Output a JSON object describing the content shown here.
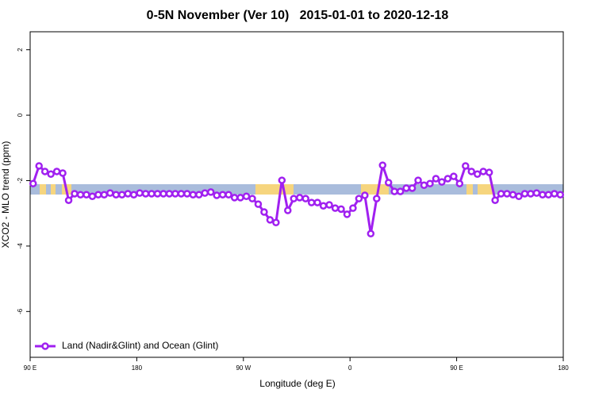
{
  "chart_data": {
    "type": "line",
    "title": "0-5N November (Ver 10)   2015-01-01 to 2020-12-18",
    "x_label": "Longitude (deg E)",
    "y_label": "XCO2 - MLO trend (ppm)",
    "xlim": [
      90,
      540
    ],
    "xticks": [
      {
        "value": 90,
        "label": "90 E"
      },
      180,
      {
        "value": 270,
        "label": "90 W"
      },
      {
        "value": 360,
        "label": "0"
      },
      {
        "value": 450,
        "label": "90 E"
      },
      {
        "value": 540,
        "label": "180"
      }
    ],
    "ylim": [
      -7.4,
      2.55
    ],
    "yticks": [
      2,
      0,
      -2,
      -4,
      -6
    ],
    "legend": "bottom-left",
    "x": [
      92.5,
      97.5,
      102.5,
      107.5,
      112.5,
      117.5,
      122.5,
      127.5,
      132.5,
      137.5,
      142.5,
      147.5,
      152.5,
      157.5,
      162.5,
      167.5,
      172.5,
      177.5,
      182.5,
      187.5,
      192.5,
      197.5,
      202.5,
      207.5,
      212.5,
      217.5,
      222.5,
      227.5,
      232.5,
      237.5,
      242.5,
      247.5,
      252.5,
      257.5,
      262.5,
      267.5,
      272.5,
      277.5,
      282.5,
      287.5,
      292.5,
      297.5,
      302.5,
      307.5,
      312.5,
      317.5,
      322.5,
      327.5,
      332.5,
      337.5,
      342.5,
      347.5,
      352.5,
      357.5,
      362.5,
      367.5,
      372.5,
      377.5,
      382.5,
      387.5,
      392.5,
      397.5,
      402.5,
      407.5,
      412.5,
      417.5,
      422.5,
      427.5,
      432.5,
      437.5,
      442.5,
      447.5,
      452.5,
      457.5,
      462.5,
      467.5,
      472.5,
      477.5,
      482.5,
      487.5,
      492.5,
      497.5,
      502.5,
      507.5,
      512.5,
      517.5,
      522.5,
      527.5,
      532.5,
      537.5
    ],
    "series": [
      {
        "name": "Land (Nadir&Glint) and Ocean (Glint)",
        "color": "#a020f0",
        "values": [
          -2.09,
          -1.55,
          -1.72,
          -1.8,
          -1.72,
          -1.77,
          -2.6,
          -2.4,
          -2.43,
          -2.43,
          -2.48,
          -2.43,
          -2.43,
          -2.38,
          -2.43,
          -2.43,
          -2.4,
          -2.43,
          -2.38,
          -2.4,
          -2.4,
          -2.4,
          -2.4,
          -2.4,
          -2.4,
          -2.4,
          -2.4,
          -2.43,
          -2.43,
          -2.38,
          -2.35,
          -2.45,
          -2.43,
          -2.43,
          -2.52,
          -2.52,
          -2.48,
          -2.55,
          -2.72,
          -2.96,
          -3.2,
          -3.28,
          -1.99,
          -2.91,
          -2.55,
          -2.52,
          -2.55,
          -2.67,
          -2.67,
          -2.77,
          -2.74,
          -2.84,
          -2.87,
          -3.03,
          -2.84,
          -2.55,
          -2.45,
          -3.62,
          -2.55,
          -1.53,
          -2.06,
          -2.33,
          -2.33,
          -2.23,
          -2.23,
          -1.99,
          -2.14,
          -2.09,
          -1.94,
          -2.04,
          -1.94,
          -1.87,
          -2.09,
          -1.55,
          -1.72,
          -1.8,
          -1.72,
          -1.75,
          -2.6,
          -2.4,
          -2.4,
          -2.43,
          -2.48,
          -2.4,
          -2.4,
          -2.38,
          -2.43,
          -2.43,
          -2.4,
          -2.43
        ]
      }
    ]
  }
}
